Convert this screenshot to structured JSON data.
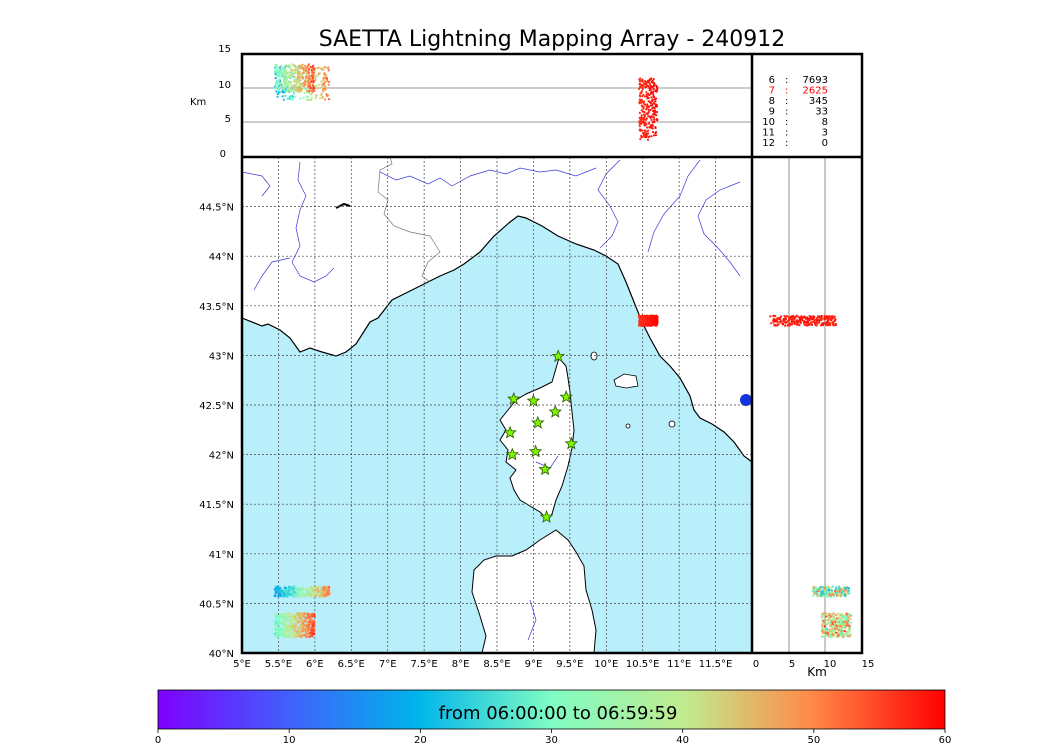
{
  "title": "SAETTA Lightning Mapping Array - 240912",
  "top_panel": {
    "ylabel": "Km",
    "yticks": [
      "15",
      "10",
      "5",
      "0"
    ],
    "reference_lines_km": [
      5,
      10
    ]
  },
  "right_panel": {
    "xlabel": "Km",
    "xticks": [
      "0",
      "5",
      "10",
      "15"
    ],
    "reference_lines_km": [
      5,
      10
    ]
  },
  "stats": {
    "rows": [
      {
        "k": "6",
        "v": "7693",
        "highlight": false
      },
      {
        "k": "7",
        "v": "2625",
        "highlight": true
      },
      {
        "k": "8",
        "v": "345",
        "highlight": false
      },
      {
        "k": "9",
        "v": "33",
        "highlight": false
      },
      {
        "k": "10",
        "v": "8",
        "highlight": false
      },
      {
        "k": "11",
        "v": "3",
        "highlight": false
      },
      {
        "k": "12",
        "v": "0",
        "highlight": false
      }
    ],
    "highlight_color": "#ff0000"
  },
  "map": {
    "lon_range": [
      5.0,
      12.0
    ],
    "lat_range": [
      40.0,
      45.0
    ],
    "lon_ticks": [
      "5°E",
      "5.5°E",
      "6°E",
      "6.5°E",
      "7°E",
      "7.5°E",
      "8°E",
      "8.5°E",
      "9°E",
      "9.5°E",
      "10°E",
      "10.5°E",
      "11°E",
      "11.5°E"
    ],
    "lat_ticks": [
      "40°N",
      "40.5°N",
      "41°N",
      "41.5°N",
      "42°N",
      "42.5°N",
      "43°N",
      "43.5°N",
      "44°N",
      "44.5°N"
    ],
    "sea_color": "#b9eefb",
    "river_color": "#3a3ad6",
    "grid": "dotted",
    "stations": [
      {
        "lon": 9.34,
        "lat": 42.99
      },
      {
        "lon": 8.73,
        "lat": 42.56
      },
      {
        "lon": 9.0,
        "lat": 42.54
      },
      {
        "lon": 9.45,
        "lat": 42.58
      },
      {
        "lon": 9.3,
        "lat": 42.43
      },
      {
        "lon": 9.06,
        "lat": 42.32
      },
      {
        "lon": 8.68,
        "lat": 42.22
      },
      {
        "lon": 9.52,
        "lat": 42.11
      },
      {
        "lon": 8.71,
        "lat": 42.0
      },
      {
        "lon": 9.03,
        "lat": 42.03
      },
      {
        "lon": 9.16,
        "lat": 41.85
      },
      {
        "lon": 9.18,
        "lat": 41.37
      }
    ],
    "station_color": "#7ff500"
  },
  "clusters": [
    {
      "lon": [
        5.45,
        6.2
      ],
      "lat": [
        40.57,
        40.67
      ],
      "alt_km": [
        8.3,
        13.3
      ],
      "t_min": [
        12,
        55
      ],
      "n": 220
    },
    {
      "lon": [
        5.45,
        6.0
      ],
      "lat": [
        40.16,
        40.4
      ],
      "alt_km": [
        9.5,
        13.5
      ],
      "t_min": [
        25,
        58
      ],
      "n": 320
    },
    {
      "lon": [
        10.45,
        10.7
      ],
      "lat": [
        43.3,
        43.4
      ],
      "alt_km": [
        2.5,
        11.5
      ],
      "t_min": [
        56,
        60
      ],
      "n": 260
    }
  ],
  "colorbar": {
    "label": "from 06:00:00 to 06:59:59",
    "ticks": [
      "0",
      "10",
      "20",
      "30",
      "40",
      "50",
      "60"
    ],
    "range": [
      0,
      60
    ]
  }
}
